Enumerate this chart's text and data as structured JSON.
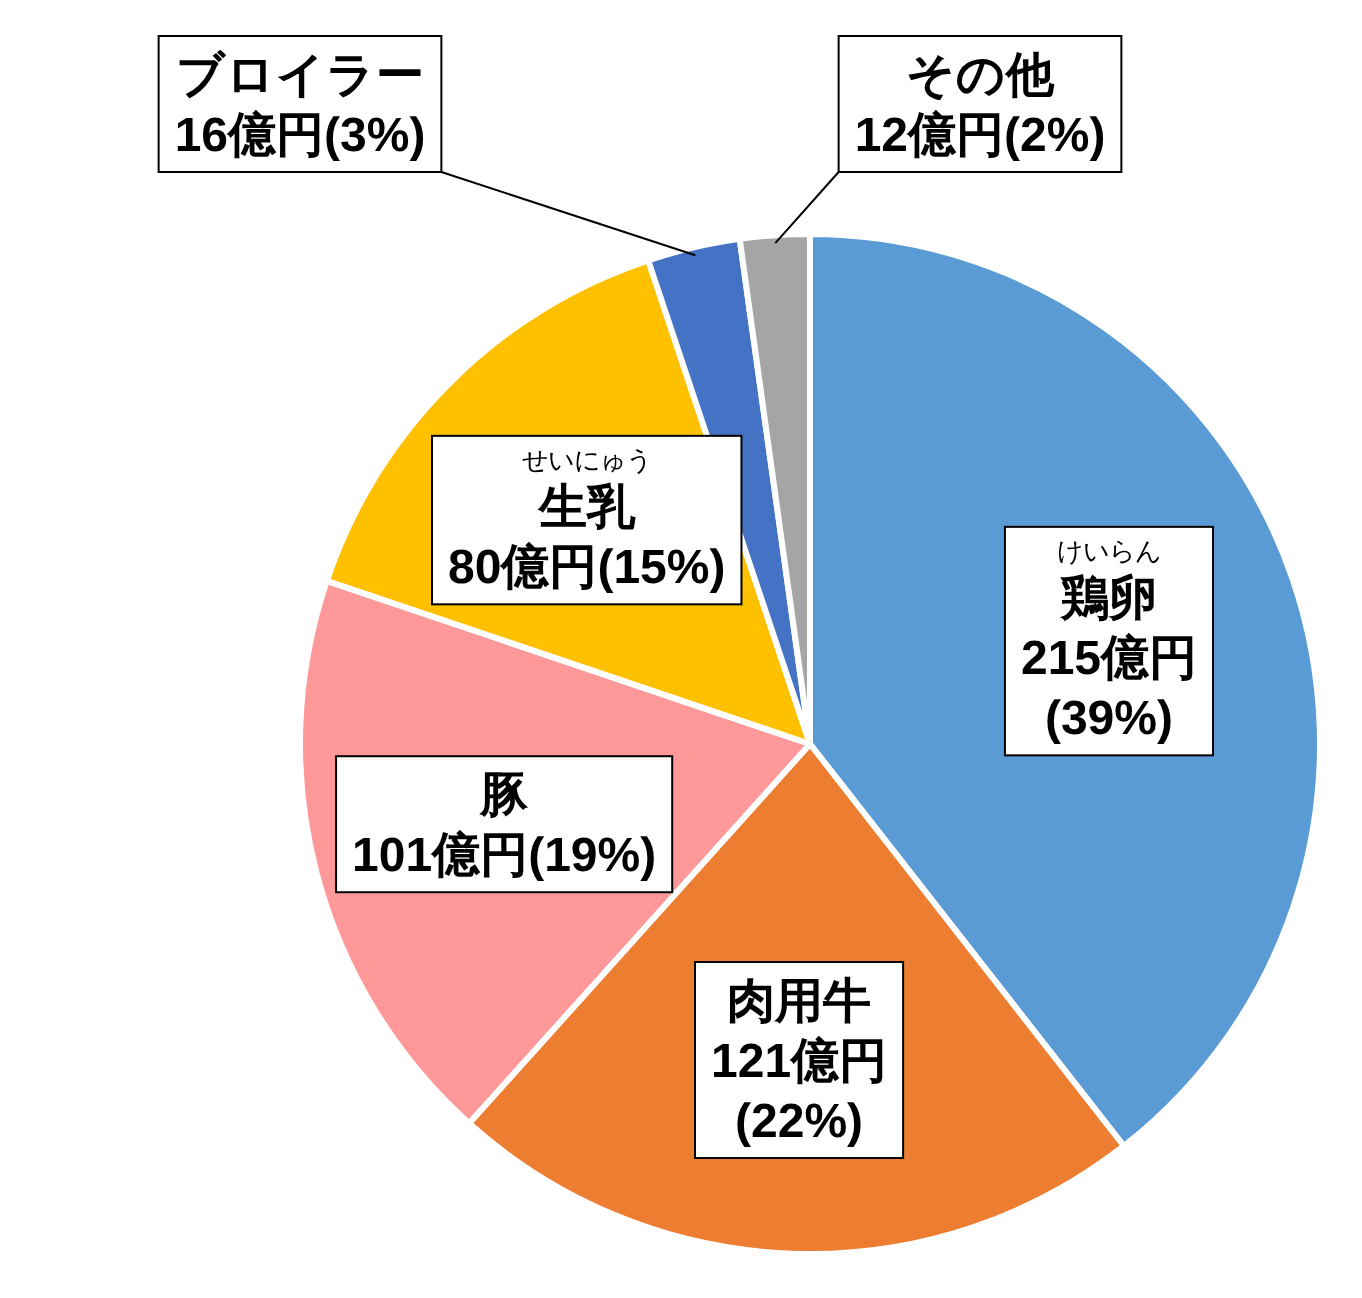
{
  "chart_data": {
    "type": "pie",
    "categories": [
      "鶏卵",
      "肉用牛",
      "豚",
      "生乳",
      "ブロイラー",
      "その他"
    ],
    "values": [
      215,
      121,
      101,
      80,
      16,
      12
    ],
    "colors": [
      "#5b9bd5",
      "#ed7d31",
      "#ff9999",
      "#ffc000",
      "#4472c4",
      "#a5a5a5"
    ],
    "value_labels": [
      "215億円(39%)",
      "121億円(22%)",
      "101億円(19%)",
      "80億円(15%)",
      "16億円(3%)",
      "12億円(2%)"
    ],
    "annotations": [
      {
        "text": "けいらん",
        "x": "鶏卵"
      },
      {
        "text": "せいにゅう",
        "x": "生乳"
      }
    ]
  }
}
